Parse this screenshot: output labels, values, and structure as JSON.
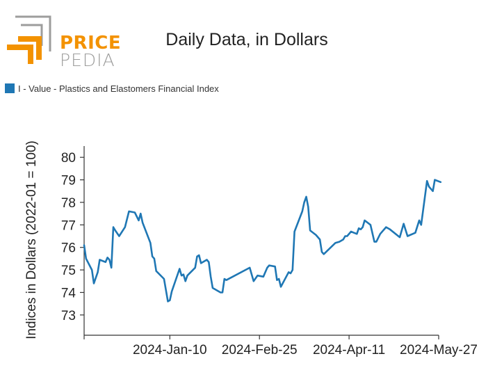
{
  "logo": {
    "text_line1": "PRICE",
    "text_line2": "PEDIA",
    "color_orange": "#f39200",
    "color_grey": "#9d9d9c"
  },
  "chart_data": {
    "type": "line",
    "title": "Daily Data, in Dollars",
    "xlabel": "",
    "ylabel": "Indices in Dollars (2022-01 = 100)",
    "ylim": [
      72.1,
      80.5
    ],
    "yticks": [
      73,
      74,
      75,
      76,
      77,
      78,
      79,
      80
    ],
    "xlim": [
      "2023-11-27",
      "2024-05-27"
    ],
    "xticks": [
      "2024-01-10",
      "2024-02-25",
      "2024-04-11",
      "2024-05-27"
    ],
    "xtick_labels": [
      "2024-Jan-10",
      "2024-Feb-25",
      "2024-Apr-11",
      "2024-May-27"
    ],
    "grid": false,
    "legend_position": "top-left",
    "series": [
      {
        "name": "I - Value - Plastics and Elastomers Financial Index",
        "color": "#1f77b4",
        "points": [
          [
            "2023-11-27",
            76.1
          ],
          [
            "2023-11-28",
            75.5
          ],
          [
            "2023-12-01",
            75.0
          ],
          [
            "2023-12-02",
            74.4
          ],
          [
            "2023-12-04",
            74.9
          ],
          [
            "2023-12-05",
            75.45
          ],
          [
            "2023-12-08",
            75.35
          ],
          [
            "2023-12-09",
            75.55
          ],
          [
            "2023-12-10",
            75.45
          ],
          [
            "2023-12-11",
            75.1
          ],
          [
            "2023-12-12",
            76.9
          ],
          [
            "2023-12-13",
            76.75
          ],
          [
            "2023-12-15",
            76.5
          ],
          [
            "2023-12-18",
            76.9
          ],
          [
            "2023-12-20",
            77.6
          ],
          [
            "2023-12-23",
            77.55
          ],
          [
            "2023-12-25",
            77.2
          ],
          [
            "2023-12-26",
            77.5
          ],
          [
            "2023-12-27",
            77.1
          ],
          [
            "2023-12-31",
            76.2
          ],
          [
            "2024-01-01",
            75.6
          ],
          [
            "2024-01-02",
            75.5
          ],
          [
            "2024-01-03",
            74.95
          ],
          [
            "2024-01-07",
            74.6
          ],
          [
            "2024-01-09",
            73.6
          ],
          [
            "2024-01-10",
            73.65
          ],
          [
            "2024-01-11",
            74.05
          ],
          [
            "2024-01-15",
            75.05
          ],
          [
            "2024-01-16",
            74.75
          ],
          [
            "2024-01-17",
            74.8
          ],
          [
            "2024-01-18",
            74.5
          ],
          [
            "2024-01-19",
            74.75
          ],
          [
            "2024-01-23",
            75.1
          ],
          [
            "2024-01-24",
            75.6
          ],
          [
            "2024-01-25",
            75.65
          ],
          [
            "2024-01-26",
            75.3
          ],
          [
            "2024-01-29",
            75.45
          ],
          [
            "2024-01-30",
            75.35
          ],
          [
            "2024-01-31",
            74.7
          ],
          [
            "2024-02-01",
            74.2
          ],
          [
            "2024-02-05",
            74.0
          ],
          [
            "2024-02-06",
            74.0
          ],
          [
            "2024-02-07",
            74.6
          ],
          [
            "2024-02-08",
            74.55
          ],
          [
            "2024-02-20",
            75.1
          ],
          [
            "2024-02-22",
            74.5
          ],
          [
            "2024-02-24",
            74.75
          ],
          [
            "2024-02-27",
            74.7
          ],
          [
            "2024-02-29",
            75.1
          ],
          [
            "2024-03-01",
            75.2
          ],
          [
            "2024-03-04",
            75.15
          ],
          [
            "2024-03-05",
            74.55
          ],
          [
            "2024-03-06",
            74.6
          ],
          [
            "2024-03-07",
            74.25
          ],
          [
            "2024-03-11",
            74.9
          ],
          [
            "2024-03-12",
            74.85
          ],
          [
            "2024-03-13",
            75.0
          ],
          [
            "2024-03-14",
            76.7
          ],
          [
            "2024-03-18",
            77.6
          ],
          [
            "2024-03-19",
            78.0
          ],
          [
            "2024-03-20",
            78.25
          ],
          [
            "2024-03-21",
            77.8
          ],
          [
            "2024-03-22",
            76.75
          ],
          [
            "2024-03-25",
            76.55
          ],
          [
            "2024-03-27",
            76.35
          ],
          [
            "2024-03-28",
            75.8
          ],
          [
            "2024-03-29",
            75.7
          ],
          [
            "2024-04-01",
            75.95
          ],
          [
            "2024-04-04",
            76.2
          ],
          [
            "2024-04-06",
            76.25
          ],
          [
            "2024-04-08",
            76.35
          ],
          [
            "2024-04-09",
            76.5
          ],
          [
            "2024-04-10",
            76.5
          ],
          [
            "2024-04-12",
            76.7
          ],
          [
            "2024-04-15",
            76.6
          ],
          [
            "2024-04-16",
            76.85
          ],
          [
            "2024-04-17",
            76.8
          ],
          [
            "2024-04-18",
            76.9
          ],
          [
            "2024-04-19",
            77.2
          ],
          [
            "2024-04-22",
            77.0
          ],
          [
            "2024-04-24",
            76.25
          ],
          [
            "2024-04-25",
            76.25
          ],
          [
            "2024-04-27",
            76.6
          ],
          [
            "2024-04-30",
            76.9
          ],
          [
            "2024-05-02",
            76.8
          ],
          [
            "2024-05-07",
            76.45
          ],
          [
            "2024-05-09",
            77.05
          ],
          [
            "2024-05-11",
            76.5
          ],
          [
            "2024-05-15",
            76.65
          ],
          [
            "2024-05-17",
            77.2
          ],
          [
            "2024-05-18",
            77.0
          ],
          [
            "2024-05-21",
            78.95
          ],
          [
            "2024-05-22",
            78.7
          ],
          [
            "2024-05-24",
            78.5
          ],
          [
            "2024-05-25",
            79.0
          ],
          [
            "2024-05-28",
            78.9
          ]
        ]
      }
    ]
  }
}
